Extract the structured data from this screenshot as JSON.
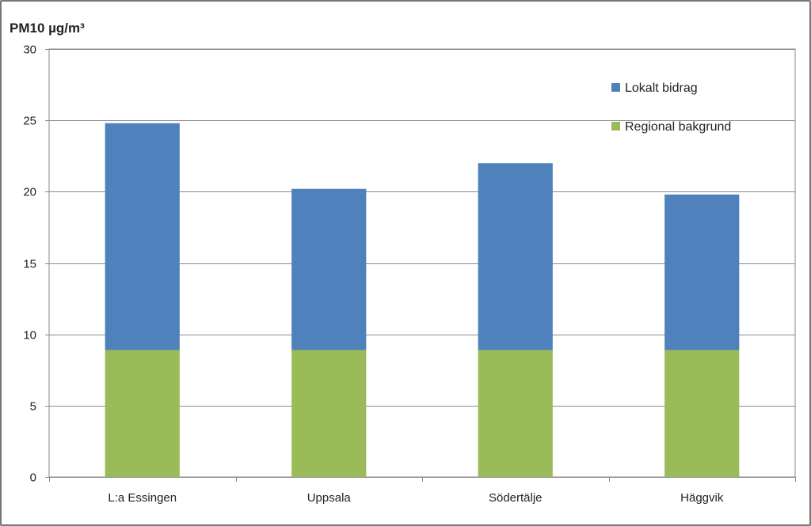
{
  "chart_data": {
    "type": "bar",
    "stacked": true,
    "title": "",
    "xlabel": "",
    "ylabel": "PM10 µg/m³",
    "ylim": [
      0,
      30
    ],
    "yticks": [
      0,
      5,
      10,
      15,
      20,
      25,
      30
    ],
    "grid": true,
    "legend_position": "top-right",
    "categories": [
      "L:a Essingen",
      "Uppsala",
      "Södertälje",
      "Häggvik"
    ],
    "series": [
      {
        "name": "Regional bakgrund",
        "color": "#9BBB59",
        "values": [
          8.9,
          8.9,
          8.9,
          8.9
        ]
      },
      {
        "name": "Lokalt bidrag",
        "color": "#4F81BD",
        "values": [
          15.9,
          11.3,
          13.1,
          10.9
        ]
      }
    ],
    "legend_order": [
      "Lokalt bidrag",
      "Regional bakgrund"
    ]
  }
}
